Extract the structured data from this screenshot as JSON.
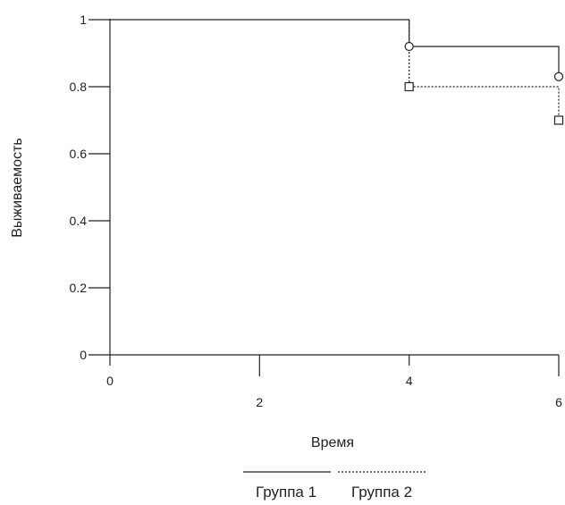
{
  "chart_data": {
    "type": "line",
    "step": true,
    "xlabel": "Время",
    "ylabel": "Выживаемость",
    "xlim": [
      0,
      6
    ],
    "ylim": [
      0,
      1
    ],
    "xticks": [
      "0",
      "2",
      "4",
      "6"
    ],
    "yticks": [
      "0",
      "0.2",
      "0.4",
      "0.6",
      "0.8",
      "1"
    ],
    "grid": false,
    "legend_position": "bottom",
    "series": [
      {
        "name": "Группа 1",
        "line_style": "solid",
        "marker": "circle",
        "steps": [
          [
            0,
            1
          ],
          [
            4,
            1
          ],
          [
            4,
            0.92
          ],
          [
            6,
            0.92
          ],
          [
            6,
            0.83
          ]
        ],
        "censored": [
          [
            4,
            0.92
          ],
          [
            6,
            0.83
          ]
        ]
      },
      {
        "name": "Группа 2",
        "line_style": "dotted",
        "marker": "square",
        "steps": [
          [
            4,
            1
          ],
          [
            4,
            0.8
          ],
          [
            6,
            0.8
          ],
          [
            6,
            0.7
          ]
        ],
        "censored": [
          [
            4,
            0.8
          ],
          [
            6,
            0.7
          ]
        ]
      }
    ]
  }
}
